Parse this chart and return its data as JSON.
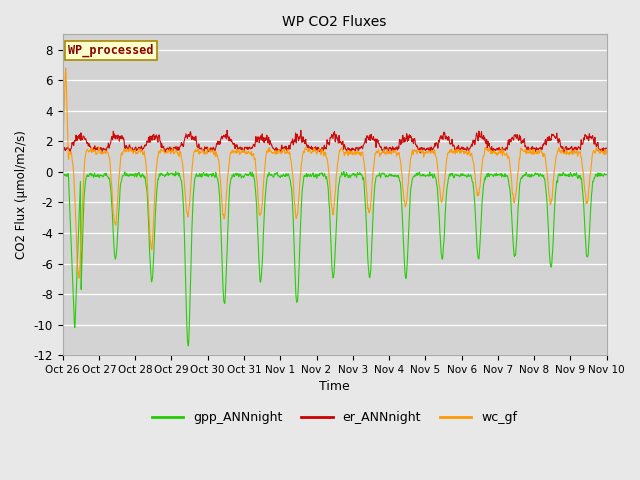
{
  "title": "WP CO2 Fluxes",
  "xlabel": "Time",
  "ylabel": "CO2 Flux (μmol/m2/s)",
  "ylim": [
    -12,
    9
  ],
  "yticks": [
    -12,
    -10,
    -8,
    -6,
    -4,
    -2,
    0,
    2,
    4,
    6,
    8
  ],
  "background_color": "#e8e8e8",
  "plot_bg_color": "#d3d3d3",
  "watermark_text": "WP_processed",
  "watermark_color": "#8b0000",
  "watermark_bg": "#ffffcc",
  "legend_labels": [
    "gpp_ANNnight",
    "er_ANNnight",
    "wc_gf"
  ],
  "legend_colors": [
    "#22cc00",
    "#cc0000",
    "#ff9900"
  ],
  "line_colors": {
    "gpp": "#22cc00",
    "er": "#cc0000",
    "wc": "#ff9900"
  },
  "xtick_labels": [
    "Oct 26",
    "Oct 27",
    "Oct 28",
    "Oct 29",
    "Oct 30",
    "Oct 31",
    "Nov 1",
    "Nov 2",
    "Nov 3",
    "Nov 4",
    "Nov 5",
    "Nov 6",
    "Nov 7",
    "Nov 8",
    "Nov 9",
    "Nov 10"
  ],
  "n_days": 15,
  "points_per_day": 96,
  "figsize": [
    6.4,
    4.8
  ],
  "dpi": 100
}
